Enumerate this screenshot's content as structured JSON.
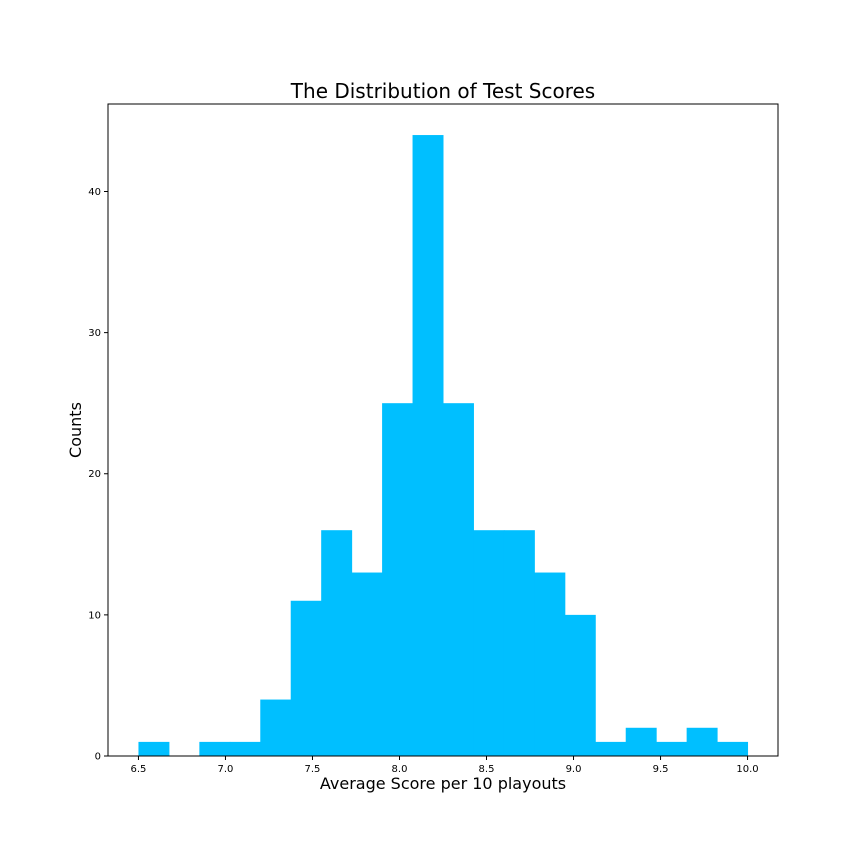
{
  "chart_data": {
    "type": "bar",
    "subtype": "histogram",
    "title": "The Distribution of Test Scores",
    "xlabel": "Average Score per 10 playouts",
    "ylabel": "Counts",
    "bar_color": "#00bfff",
    "bin_start": 6.5,
    "bin_width": 0.175,
    "values": [
      1,
      0,
      1,
      1,
      4,
      11,
      16,
      13,
      25,
      44,
      25,
      16,
      16,
      13,
      10,
      1,
      2,
      1,
      2,
      1
    ],
    "xlim": [
      6.325,
      10.175
    ],
    "ylim": [
      0,
      46.2
    ],
    "xticks": [
      6.5,
      7.0,
      7.5,
      8.0,
      8.5,
      9.0,
      9.5,
      10.0
    ],
    "xtick_labels": [
      "6.5",
      "7.0",
      "7.5",
      "8.0",
      "8.5",
      "9.0",
      "9.5",
      "10.0"
    ],
    "yticks": [
      0,
      10,
      20,
      30,
      40
    ],
    "ytick_labels": [
      "0",
      "10",
      "20",
      "30",
      "40"
    ],
    "grid": false,
    "legend": "none"
  }
}
